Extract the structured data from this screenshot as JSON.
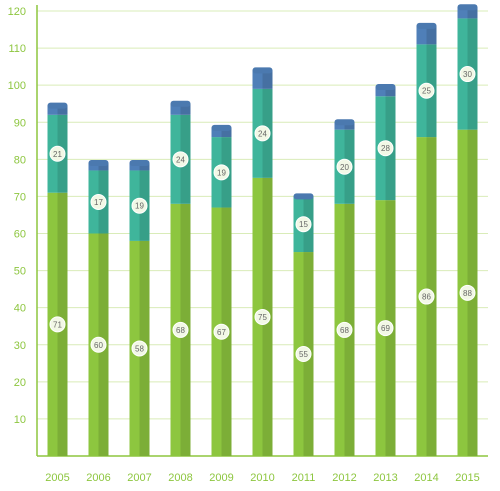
{
  "chart_data": {
    "type": "bar",
    "stacked": true,
    "categories": [
      "2005",
      "2006",
      "2007",
      "2008",
      "2009",
      "2010",
      "2011",
      "2012",
      "2013",
      "2014",
      "2015"
    ],
    "series": [
      {
        "values": [
          71,
          60,
          58,
          68,
          67,
          75,
          55,
          68,
          69,
          86,
          88
        ],
        "color": "#8dc63f"
      },
      {
        "values": [
          21,
          17,
          19,
          24,
          19,
          24,
          15,
          20,
          28,
          25,
          30
        ],
        "color": "#3fb59b"
      },
      {
        "values": [
          2.5,
          2,
          2,
          3,
          2.5,
          5,
          0,
          2,
          2.5,
          5,
          3
        ],
        "color": "#4f7fb8"
      }
    ],
    "data_labels": [
      [
        "71",
        "60",
        "58",
        "68",
        "67",
        "75",
        "55",
        "68",
        "69",
        "86",
        "88"
      ],
      [
        "21",
        "17",
        "19",
        "24",
        "19",
        "24",
        "15",
        "20",
        "28",
        "25",
        "30"
      ]
    ],
    "yticks": [
      "10",
      "20",
      "30",
      "40",
      "50",
      "60",
      "70",
      "80",
      "90",
      "100",
      "110",
      "120"
    ],
    "ylim": [
      0,
      120
    ],
    "grid": true,
    "colors": {
      "axis": "#8dc63f",
      "grid": "#d9ecb8",
      "tick_text": "#8dc63f",
      "label_bg": "#f2f8e6"
    }
  }
}
